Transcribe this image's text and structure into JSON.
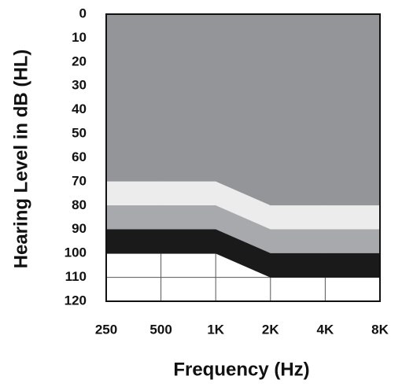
{
  "chart_data": {
    "type": "stacked_area",
    "xlabel": "Frequency (Hz)",
    "ylabel": "Hearing Level in dB (HL)",
    "categories": [
      "250",
      "500",
      "1K",
      "2K",
      "4K",
      "8K"
    ],
    "series": [
      {
        "color": "#939598",
        "values": [
          70,
          70,
          70,
          80,
          80,
          80
        ]
      },
      {
        "color": "#ececec",
        "values": [
          10,
          10,
          10,
          10,
          10,
          10
        ]
      },
      {
        "color": "#a7a9ac",
        "values": [
          10,
          10,
          10,
          10,
          10,
          10
        ]
      },
      {
        "color": "#1a1a1a",
        "values": [
          10,
          10,
          10,
          10,
          10,
          10
        ]
      }
    ],
    "ylim": [
      0,
      120
    ],
    "y_inverted": true,
    "yticks": [
      0,
      10,
      20,
      30,
      40,
      50,
      60,
      70,
      80,
      90,
      100,
      110,
      120
    ],
    "grid": true
  }
}
